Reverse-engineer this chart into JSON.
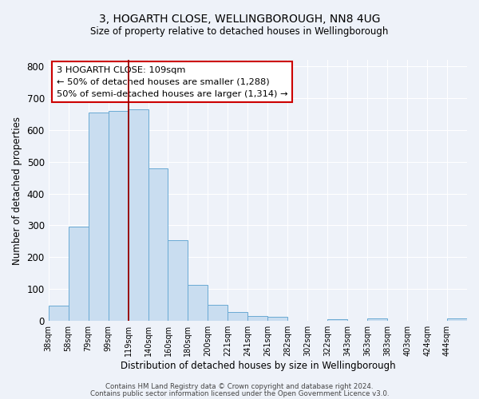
{
  "title": "3, HOGARTH CLOSE, WELLINGBOROUGH, NN8 4UG",
  "subtitle": "Size of property relative to detached houses in Wellingborough",
  "xlabel": "Distribution of detached houses by size in Wellingborough",
  "ylabel": "Number of detached properties",
  "bin_labels": [
    "38sqm",
    "58sqm",
    "79sqm",
    "99sqm",
    "119sqm",
    "140sqm",
    "160sqm",
    "180sqm",
    "200sqm",
    "221sqm",
    "241sqm",
    "261sqm",
    "282sqm",
    "302sqm",
    "322sqm",
    "343sqm",
    "363sqm",
    "383sqm",
    "403sqm",
    "424sqm",
    "444sqm"
  ],
  "bar_heights": [
    48,
    295,
    655,
    660,
    665,
    480,
    253,
    113,
    50,
    28,
    15,
    13,
    0,
    0,
    5,
    0,
    8,
    0,
    0,
    0,
    7
  ],
  "bar_color": "#c9ddf0",
  "bar_edge_color": "#6aaad4",
  "vline_bin_index": 3,
  "vline_color": "#990000",
  "annotation_text": "3 HOGARTH CLOSE: 109sqm\n← 50% of detached houses are smaller (1,288)\n50% of semi-detached houses are larger (1,314) →",
  "annotation_box_color": "#ffffff",
  "annotation_box_edge": "#cc0000",
  "ylim": [
    0,
    820
  ],
  "yticks": [
    0,
    100,
    200,
    300,
    400,
    500,
    600,
    700,
    800
  ],
  "footer_line1": "Contains HM Land Registry data © Crown copyright and database right 2024.",
  "footer_line2": "Contains public sector information licensed under the Open Government Licence v3.0.",
  "background_color": "#eef2f9",
  "grid_color": "#ffffff",
  "title_fontsize": 10,
  "subtitle_fontsize": 8.5
}
